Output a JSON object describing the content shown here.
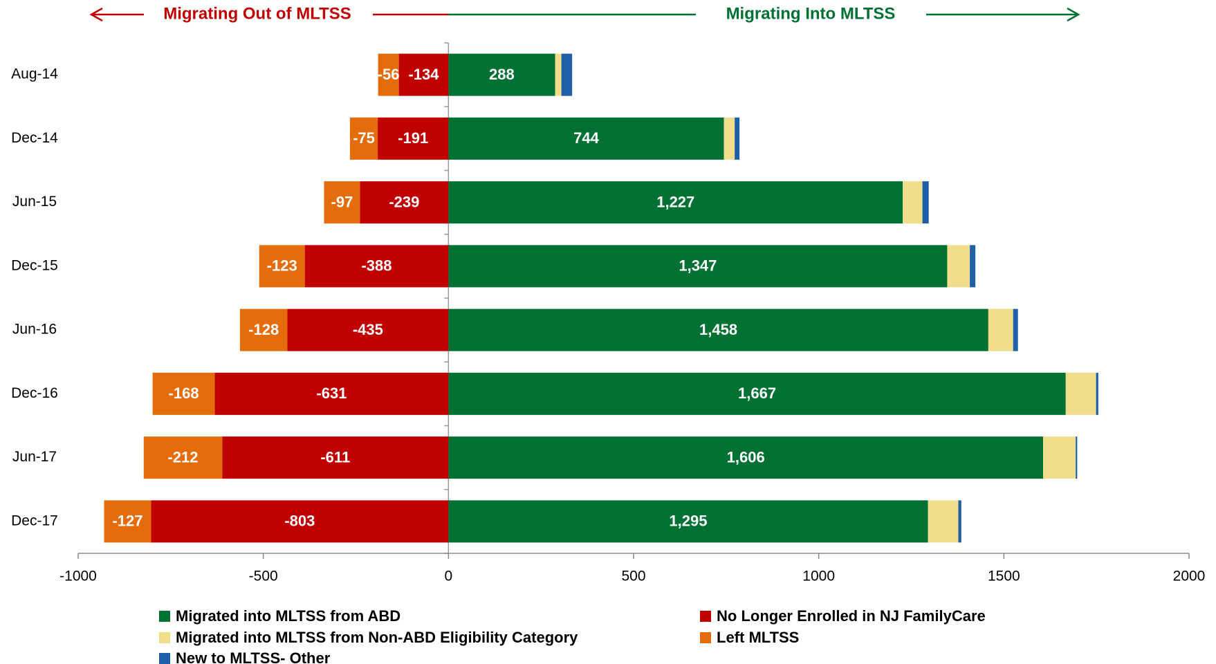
{
  "chart_data": {
    "type": "bar",
    "orientation": "horizontal",
    "stacked": true,
    "annotations": [
      "Migrating Out of MLTSS",
      "Migrating Into MLTSS"
    ],
    "categories": [
      "Aug-14",
      "Dec-14",
      "Jun-15",
      "Dec-15",
      "Jun-16",
      "Dec-16",
      "Jun-17",
      "Dec-17"
    ],
    "series": [
      {
        "name": "Migrated into MLTSS from ABD",
        "color": "#007033",
        "values": [
          288,
          744,
          1227,
          1347,
          1458,
          1667,
          1606,
          1295
        ],
        "value_labels": [
          "288",
          "744",
          "1,227",
          "1,347",
          "1,458",
          "1,667",
          "1,606",
          "1,295"
        ]
      },
      {
        "name": "No Longer Enrolled in NJ FamilyCare",
        "color": "#c00000",
        "values": [
          -134,
          -191,
          -239,
          -388,
          -435,
          -631,
          -611,
          -803
        ]
      },
      {
        "name": "Migrated into MLTSS from Non-ABD Eligibility Category",
        "color": "#f0de8c",
        "values": [
          17,
          29,
          53,
          61,
          67,
          82,
          88,
          82
        ]
      },
      {
        "name": "Left MLTSS",
        "color": "#e46c0a",
        "values": [
          -56,
          -75,
          -97,
          -123,
          -128,
          -168,
          -212,
          -127
        ]
      },
      {
        "name": "New to MLTSS- Other",
        "color": "#1f5fa8",
        "values": [
          29,
          13,
          17,
          15,
          13,
          6,
          4,
          8
        ]
      }
    ],
    "labeled_series": [
      0,
      1,
      3
    ],
    "xlim": [
      -1000,
      2000
    ],
    "xticks": [
      -1000,
      -500,
      0,
      500,
      1000,
      1500,
      2000
    ]
  }
}
